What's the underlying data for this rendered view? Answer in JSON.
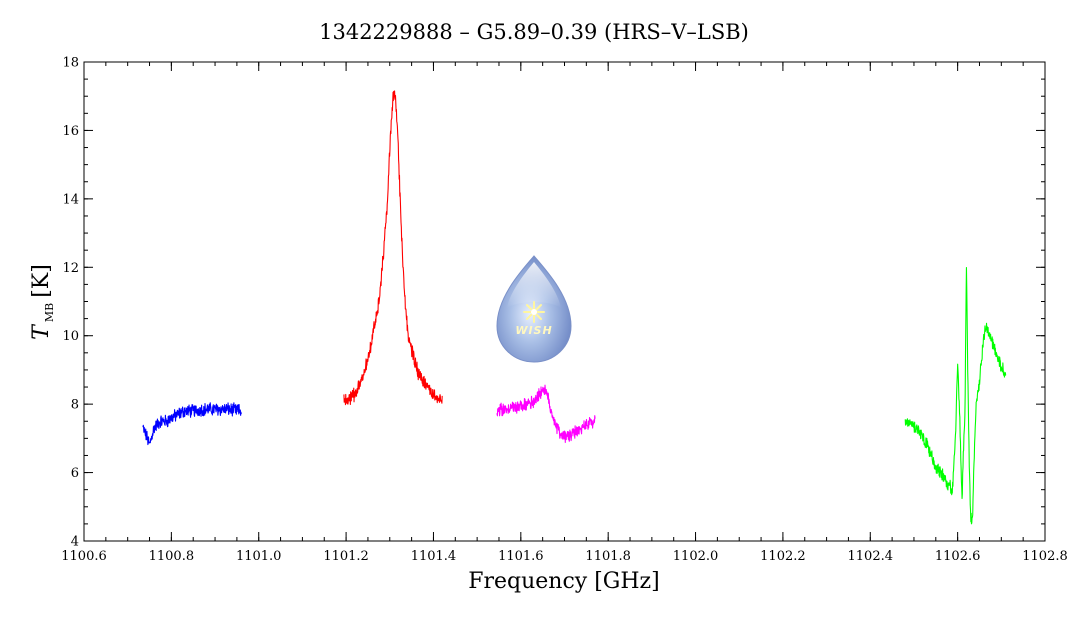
{
  "chart_data": {
    "type": "line",
    "title": "1342229888 – G5.89–0.39 (HRS–V–LSB)",
    "xlabel": "Frequency [GHz]",
    "ylabel": {
      "main": "T",
      "sub": "MB",
      "unit": "[K]"
    },
    "xlim": [
      1100.6,
      1102.8
    ],
    "ylim": [
      4,
      18
    ],
    "xticks": [
      1100.6,
      1100.8,
      1101.0,
      1101.2,
      1101.4,
      1101.6,
      1101.8,
      1102.0,
      1102.2,
      1102.4,
      1102.6,
      1102.8
    ],
    "xtick_labels": [
      "1100.6",
      "1100.8",
      "1101.0",
      "1101.2",
      "1101.4",
      "1101.6",
      "1101.8",
      "1102.0",
      "1102.2",
      "1102.4",
      "1102.6",
      "1102.8"
    ],
    "yticks": [
      4,
      6,
      8,
      10,
      12,
      14,
      16,
      18
    ],
    "ytick_labels": [
      "4",
      "6",
      "8",
      "10",
      "12",
      "14",
      "16",
      "18"
    ],
    "grid": false,
    "series": [
      {
        "color": "#0000ff",
        "x": [
          1100.735,
          1100.745,
          1100.75,
          1100.76,
          1100.775,
          1100.79,
          1100.8,
          1100.815,
          1100.83,
          1100.85,
          1100.87,
          1100.9,
          1100.93,
          1100.96
        ],
        "y": [
          7.3,
          7.0,
          6.8,
          7.3,
          7.5,
          7.5,
          7.6,
          7.7,
          7.8,
          7.8,
          7.85,
          7.85,
          7.85,
          7.8
        ]
      },
      {
        "color": "#ff0000",
        "x": [
          1101.195,
          1101.21,
          1101.225,
          1101.24,
          1101.255,
          1101.265,
          1101.275,
          1101.285,
          1101.295,
          1101.302,
          1101.308,
          1101.313,
          1101.318,
          1101.325,
          1101.333,
          1101.342,
          1101.352,
          1101.365,
          1101.38,
          1101.395,
          1101.41,
          1101.42
        ],
        "y": [
          8.1,
          8.2,
          8.35,
          8.9,
          9.6,
          10.3,
          11.0,
          12.3,
          14.0,
          16.0,
          17.0,
          17.0,
          16.0,
          13.5,
          11.3,
          10.0,
          9.5,
          8.9,
          8.6,
          8.3,
          8.2,
          8.1
        ]
      },
      {
        "color": "#ff00ff",
        "x": [
          1101.545,
          1101.57,
          1101.6,
          1101.625,
          1101.64,
          1101.652,
          1101.662,
          1101.672,
          1101.685,
          1101.7,
          1101.715,
          1101.735,
          1101.75,
          1101.77
        ],
        "y": [
          7.8,
          7.85,
          7.95,
          8.05,
          8.25,
          8.45,
          8.2,
          7.7,
          7.25,
          7.05,
          7.1,
          7.25,
          7.4,
          7.5
        ]
      },
      {
        "color": "#00ff00",
        "x": [
          1102.48,
          1102.5,
          1102.52,
          1102.535,
          1102.545,
          1102.56,
          1102.575,
          1102.588,
          1102.595,
          1102.6,
          1102.605,
          1102.61,
          1102.613,
          1102.617,
          1102.62,
          1102.623,
          1102.627,
          1102.63,
          1102.634,
          1102.638,
          1102.642,
          1102.648,
          1102.655,
          1102.663,
          1102.67,
          1102.68,
          1102.69,
          1102.7,
          1102.71
        ],
        "y": [
          7.5,
          7.35,
          7.1,
          6.7,
          6.3,
          6.0,
          5.7,
          5.5,
          7.0,
          9.3,
          7.5,
          5.2,
          6.5,
          8.0,
          12.2,
          9.0,
          6.0,
          4.7,
          4.6,
          6.5,
          8.0,
          8.5,
          9.3,
          10.3,
          10.1,
          9.8,
          9.4,
          9.1,
          8.9
        ]
      }
    ]
  }
}
